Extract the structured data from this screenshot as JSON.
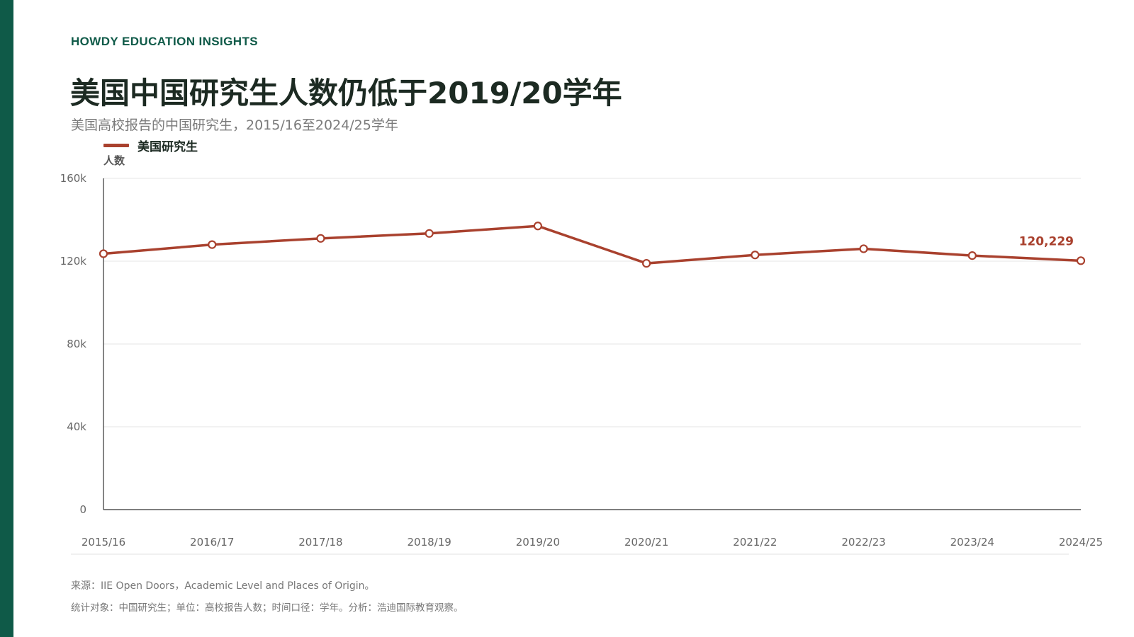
{
  "brand": "HOWDY EDUCATION INSIGHTS",
  "title": "美国中国研究生人数仍低于2019/20学年",
  "subtitle": "美国高校报告的中国研究生，2015/16至2024/25学年",
  "legend_label": "美国研究生",
  "y_unit": "人数",
  "end_label": "120,229",
  "source": "来源：IIE Open Doors，Academic Level and Places of Origin。",
  "note": "统计对象：中国研究生；单位：高校报告人数；时间口径：学年。分析：浩迪国际教育观察。",
  "colors": {
    "accent": "#0f5a48",
    "line": "#a9412e",
    "grid": "#e4e4e4",
    "axis": "#333333"
  },
  "chart_data": {
    "type": "line",
    "categories": [
      "2015/16",
      "2016/17",
      "2017/18",
      "2018/19",
      "2019/20",
      "2020/21",
      "2021/22",
      "2022/23",
      "2023/24",
      "2024/25"
    ],
    "series": [
      {
        "name": "美国研究生",
        "values": [
          123591,
          128000,
          131000,
          133400,
          137000,
          118950,
          123000,
          126000,
          122700,
          120229
        ]
      }
    ],
    "ylim": [
      0,
      160000
    ],
    "yticks": [
      0,
      40000,
      80000,
      120000,
      160000
    ],
    "ytick_labels": [
      "0",
      "40k",
      "80k",
      "120k",
      "160k"
    ],
    "ylabel": "人数",
    "xlabel": "",
    "grid": true,
    "legend": "top-left"
  }
}
